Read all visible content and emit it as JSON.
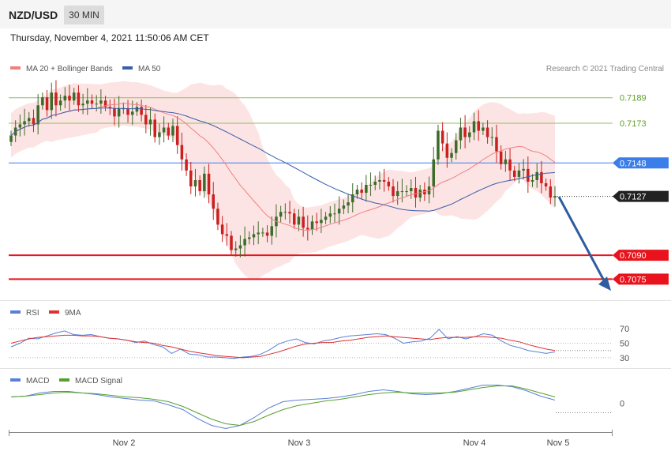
{
  "header": {
    "symbol": "NZD/USD",
    "timeframe": "30 MIN",
    "datetime": "Thursday, November 4, 2021 11:50:06 AM CET"
  },
  "legend": {
    "ma20": "MA 20 + Bollinger Bands",
    "ma50": "MA 50",
    "copyright": "Research © 2021 Trading Central",
    "rsi": "RSI",
    "rsi_ma": "9MA",
    "macd": "MACD",
    "macd_signal": "MACD Signal"
  },
  "colors": {
    "up": "#3d6b2a",
    "down": "#cc1f1f",
    "ma20": "#f08080",
    "band_fill": "#fde4e4",
    "ma50": "#3a5ea8",
    "resistance": "#8fbf5f",
    "resistance_label": "#5d9e22",
    "pivot": "#3b7de9",
    "support": "#e8131c",
    "last": "#222222",
    "rsi": "#5b7fd6",
    "rsi_ma": "#e03030",
    "macd": "#5b7fd6",
    "macd_signal": "#56a030",
    "arrow": "#2d5d9e"
  },
  "chart_data": [
    {
      "type": "candlestick",
      "ylim": [
        0.7063,
        0.7205
      ],
      "x_ticks": [
        "Nov 2",
        "Nov 3",
        "Nov 4",
        "Nov 5"
      ],
      "levels": [
        {
          "label": "0.7189",
          "value": 0.7189,
          "kind": "resistance"
        },
        {
          "label": "0.7173",
          "value": 0.7173,
          "kind": "resistance"
        },
        {
          "label": "0.7148",
          "value": 0.7148,
          "kind": "pivot"
        },
        {
          "label": "0.7090",
          "value": 0.709,
          "kind": "support"
        },
        {
          "label": "0.7075",
          "value": 0.7075,
          "kind": "support"
        }
      ],
      "last_price": {
        "label": "0.7127",
        "value": 0.7127
      },
      "closes": [
        0.7165,
        0.717,
        0.7172,
        0.7174,
        0.7176,
        0.7172,
        0.7184,
        0.7189,
        0.7181,
        0.7192,
        0.7184,
        0.7187,
        0.719,
        0.7187,
        0.7192,
        0.7184,
        0.7185,
        0.7187,
        0.7185,
        0.7185,
        0.7187,
        0.7183,
        0.7182,
        0.7177,
        0.7182,
        0.7182,
        0.7178,
        0.718,
        0.7183,
        0.7178,
        0.7172,
        0.7175,
        0.7164,
        0.7167,
        0.717,
        0.7165,
        0.7171,
        0.7159,
        0.715,
        0.7143,
        0.7133,
        0.7137,
        0.713,
        0.7141,
        0.7128,
        0.7119,
        0.7109,
        0.7103,
        0.7102,
        0.7093,
        0.7094,
        0.7096,
        0.71,
        0.7101,
        0.7103,
        0.7104,
        0.7104,
        0.7102,
        0.7108,
        0.7114,
        0.7117,
        0.7117,
        0.7116,
        0.7109,
        0.7114,
        0.7107,
        0.7106,
        0.7111,
        0.711,
        0.7112,
        0.7114,
        0.7116,
        0.7116,
        0.7119,
        0.7121,
        0.7123,
        0.7128,
        0.7131,
        0.7129,
        0.7134,
        0.7134,
        0.7136,
        0.7137,
        0.7136,
        0.7133,
        0.7127,
        0.713,
        0.713,
        0.713,
        0.7132,
        0.7126,
        0.7131,
        0.7128,
        0.7133,
        0.715,
        0.7168,
        0.716,
        0.7151,
        0.7154,
        0.7162,
        0.717,
        0.7164,
        0.7167,
        0.7174,
        0.7168,
        0.717,
        0.7164,
        0.7164,
        0.7155,
        0.7147,
        0.715,
        0.7143,
        0.7139,
        0.7143,
        0.7144,
        0.7136,
        0.7137,
        0.7142,
        0.7135,
        0.7133,
        0.7126,
        0.7127
      ]
    },
    {
      "type": "line",
      "name": "RSI",
      "levels": [
        70,
        50,
        30
      ],
      "series": [
        {
          "name": "RSI",
          "values": [
            45,
            50,
            57,
            56,
            60,
            64,
            67,
            62,
            61,
            62,
            59,
            57,
            56,
            54,
            51,
            53,
            48,
            45,
            36,
            42,
            35,
            34,
            31,
            31,
            30,
            29,
            31,
            32,
            35,
            41,
            49,
            53,
            56,
            51,
            49,
            53,
            55,
            58,
            60,
            61,
            62,
            63,
            62,
            57,
            50,
            52,
            53,
            57,
            69,
            56,
            59,
            56,
            59,
            63,
            61,
            53,
            47,
            44,
            40,
            38,
            36,
            38
          ]
        },
        {
          "name": "9MA",
          "values": [
            50,
            53,
            56,
            58,
            59,
            60,
            61,
            61,
            60,
            60,
            59,
            57,
            56,
            54,
            52,
            51,
            50,
            47,
            45,
            42,
            39,
            37,
            35,
            33,
            32,
            31,
            30,
            31,
            32,
            35,
            38,
            42,
            46,
            49,
            50,
            51,
            51,
            53,
            54,
            56,
            58,
            59,
            60,
            59,
            58,
            57,
            56,
            55,
            57,
            58,
            58,
            58,
            59,
            59,
            58,
            57,
            54,
            52,
            48,
            45,
            42,
            40
          ]
        }
      ]
    },
    {
      "type": "line",
      "name": "MACD",
      "levels": [
        0
      ],
      "series": [
        {
          "name": "MACD",
          "values": [
            0.8,
            0.9,
            1.3,
            1.5,
            1.5,
            1.3,
            1.1,
            0.8,
            0.6,
            0.4,
            0.3,
            -0.2,
            -0.8,
            -1.9,
            -2.8,
            -3.2,
            -2.8,
            -1.8,
            -0.6,
            0.2,
            0.4,
            0.5,
            0.6,
            0.8,
            1.1,
            1.5,
            1.7,
            1.5,
            1.2,
            1.1,
            1.2,
            1.5,
            1.9,
            2.3,
            2.3,
            2.1,
            1.6,
            0.9,
            0.4
          ]
        },
        {
          "name": "MACD Signal",
          "values": [
            0.8,
            0.9,
            1.1,
            1.3,
            1.4,
            1.3,
            1.2,
            1.0,
            0.8,
            0.7,
            0.5,
            0.2,
            -0.4,
            -1.2,
            -2.0,
            -2.6,
            -2.8,
            -2.3,
            -1.5,
            -0.8,
            -0.3,
            0.0,
            0.3,
            0.5,
            0.8,
            1.1,
            1.3,
            1.4,
            1.3,
            1.3,
            1.3,
            1.4,
            1.7,
            2.0,
            2.2,
            2.2,
            1.8,
            1.3,
            0.8
          ]
        }
      ]
    }
  ]
}
